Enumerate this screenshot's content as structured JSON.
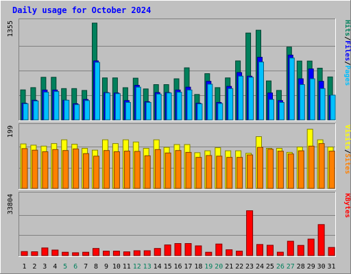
{
  "chart_data": {
    "type": "bar",
    "title": "Daily usage for October 2024",
    "days": [
      "1",
      "2",
      "3",
      "4",
      "5",
      "6",
      "7",
      "8",
      "9",
      "10",
      "11",
      "12",
      "13",
      "14",
      "15",
      "16",
      "17",
      "18",
      "19",
      "20",
      "21",
      "22",
      "23",
      "24",
      "25",
      "26",
      "27",
      "28",
      "29",
      "30",
      "31"
    ],
    "weekend_days": [
      5,
      6,
      12,
      13,
      19,
      20,
      26,
      27
    ],
    "panels": [
      {
        "id": "hits",
        "ymax_label": "1355",
        "ylim": [
          0,
          1355
        ],
        "right_labels": [
          "Pages",
          "/",
          "Files",
          "/",
          "Hits"
        ],
        "series": [
          {
            "name": "Hits",
            "values": [
              412,
              443,
              585,
              585,
              430,
              430,
              405,
              1330,
              577,
              577,
              442,
              573,
              425,
              485,
              485,
              565,
              715,
              349,
              635,
              443,
              577,
              810,
              1193,
              1232,
              535,
              405,
              1000,
              808,
              808,
              710,
              590
            ]
          },
          {
            "name": "Files",
            "values": [
              230,
              270,
              410,
              410,
              270,
              222,
              280,
              810,
              375,
              370,
              265,
              475,
              250,
              375,
              375,
              410,
              450,
              230,
              530,
              240,
              460,
              650,
              600,
              860,
              370,
              265,
              890,
              565,
              700,
              530,
              335
            ]
          },
          {
            "name": "Pages",
            "values": [
              222,
              260,
              380,
              390,
              270,
              210,
              265,
              790,
              370,
              360,
              240,
              450,
              240,
              355,
              370,
              380,
              410,
              220,
              490,
              225,
              430,
              600,
              585,
              795,
              280,
              240,
              850,
              485,
              565,
              430,
              340
            ]
          }
        ],
        "colors": {
          "Hits": "#00805c",
          "Files": "#0000ff",
          "Pages": "#00c0ff"
        }
      },
      {
        "id": "visits",
        "ymax_label": "199",
        "ylim": [
          0,
          199
        ],
        "right_labels": [
          "Sites",
          "/",
          "Visits"
        ],
        "series": [
          {
            "name": "Visits",
            "values": [
              142,
              138,
              135,
              143,
              155,
              141,
              128,
              122,
              155,
              143,
              155,
              148,
              128,
              155,
              131,
              140,
              140,
              114,
              120,
              130,
              120,
              120,
              112,
              165,
              128,
              128,
              115,
              132,
              189,
              155,
              132
            ]
          },
          {
            "name": "Sites",
            "values": [
              127,
              122,
              117,
              124,
              121,
              126,
              111,
              103,
              121,
              117,
              119,
              118,
              104,
              124,
              113,
              121,
              115,
              99,
              105,
              103,
              99,
              99,
              107,
              131,
              125,
              119,
              110,
              120,
              135,
              143,
              119
            ]
          }
        ],
        "colors": {
          "Visits": "#ffff00",
          "Sites": "#ff8000"
        }
      },
      {
        "id": "kbytes",
        "ymax_label": "33804",
        "ylim": [
          0,
          33804
        ],
        "right_labels": [
          "KBytes"
        ],
        "series": [
          {
            "name": "KBytes",
            "values": [
              2210,
              2080,
              4200,
              3040,
              1820,
              1560,
              1820,
              3920,
              2430,
              2430,
              2050,
              2640,
              2640,
              3920,
              5890,
              6630,
              6640,
              5370,
              1820,
              6380,
              3180,
              2430,
              24840,
              6120,
              5690,
              1850,
              7930,
              5630,
              9120,
              17180,
              4470
            ]
          }
        ],
        "colors": {
          "KBytes": "#ff0000"
        }
      }
    ],
    "grid": true
  },
  "colors": {
    "background": "#c0c0c0",
    "title": "#0000ff",
    "weekday_label": "#000000",
    "weekend_label": "#00805c"
  }
}
